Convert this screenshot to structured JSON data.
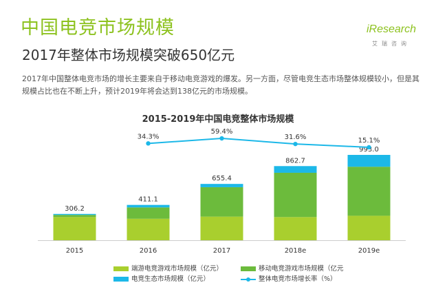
{
  "header": {
    "title": "中国电竞市场规模",
    "subtitle": "2017年整体市场规模突破650亿元",
    "logo_word": "iResearch",
    "logo_sub": "艾瑞咨询"
  },
  "description": "2017年中国整体电竞市场的增长主要来自于移动电竞游戏的爆发。另一方面，尽管电竞生态市场整体规模较小，但是其规模占比也在不断上升，预计2019年将会达到138亿元的市场规模。",
  "chart_data": {
    "type": "bar",
    "title": "2015-2019年中国电竞整体市场规模",
    "categories": [
      "2015",
      "2016",
      "2017",
      "2018e",
      "2019e"
    ],
    "stacked": true,
    "series": [
      {
        "name": "端游电竞游戏市场规模（亿元）",
        "values": [
          269.9,
          250.0,
          275.0,
          270.0,
          285.0
        ],
        "color": "#a9cf2e"
      },
      {
        "name": "移动电竞游戏市场规模（亿元",
        "values": [
          25.0,
          132.0,
          342.0,
          515.0,
          570.0
        ],
        "color": "#6cbb3c"
      },
      {
        "name": "电竞生态市场规模（亿元）",
        "values": [
          11.3,
          29.1,
          38.4,
          77.7,
          138.0
        ],
        "color": "#1cb8e8"
      }
    ],
    "totals": [
      "306.2",
      "411.1",
      "655.4",
      "862.7",
      "993.0"
    ],
    "line_series": {
      "name": "整体电竞市场增长率（%）",
      "x_categories": [
        "2016",
        "2017",
        "2018e",
        "2019e"
      ],
      "values": [
        34.3,
        59.4,
        31.6,
        15.1
      ],
      "labels": [
        "34.3%",
        "59.4%",
        "31.6%",
        "15.1%"
      ],
      "color": "#1cb8e8"
    },
    "ylim": [
      0,
      1000
    ],
    "xlabel": "",
    "ylabel": "",
    "grid": false,
    "legend_position": "bottom"
  }
}
